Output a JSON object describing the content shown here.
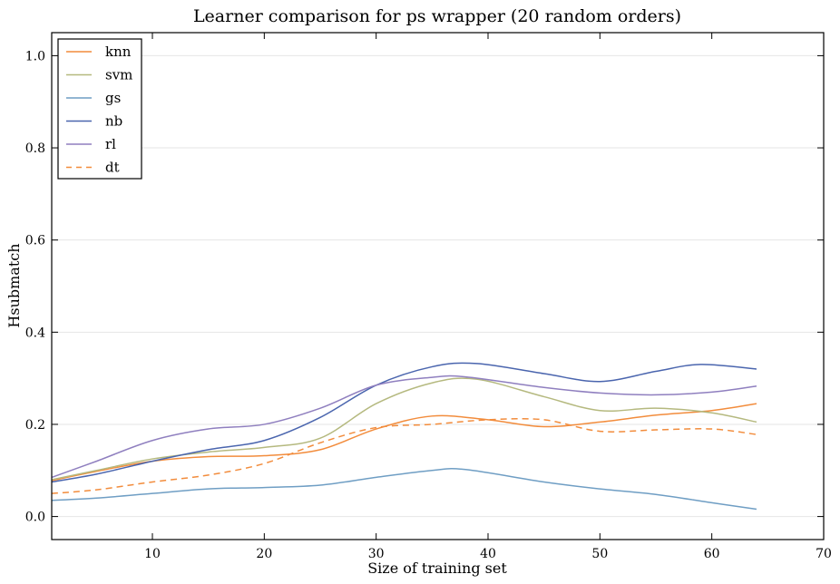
{
  "chart_data": {
    "type": "line",
    "title": "Learner comparison for ps wrapper (20 random orders)",
    "xlabel": "Size of training set",
    "ylabel": "Hsubmatch",
    "xlim": [
      1,
      70
    ],
    "ylim": [
      -0.05,
      1.05
    ],
    "xticks": [
      10,
      20,
      30,
      40,
      50,
      60,
      70
    ],
    "yticks": [
      0.0,
      0.2,
      0.4,
      0.6,
      0.8,
      1.0
    ],
    "ytick_labels": [
      "0.0",
      "0.2",
      "0.4",
      "0.6",
      "0.8",
      "1.0"
    ],
    "grid": "horizontal",
    "legend_position": "top-left",
    "series": [
      {
        "name": "knn",
        "color": "#f28c3c",
        "dash": "solid",
        "x": [
          1,
          5,
          10,
          15,
          20,
          25,
          30,
          35,
          40,
          45,
          50,
          55,
          60,
          64
        ],
        "y": [
          0.078,
          0.098,
          0.12,
          0.13,
          0.132,
          0.145,
          0.19,
          0.218,
          0.21,
          0.195,
          0.205,
          0.22,
          0.23,
          0.245
        ]
      },
      {
        "name": "svm",
        "color": "#b5b97f",
        "dash": "solid",
        "x": [
          1,
          5,
          10,
          15,
          20,
          25,
          30,
          35,
          39,
          45,
          50,
          55,
          60,
          64
        ],
        "y": [
          0.08,
          0.1,
          0.125,
          0.14,
          0.15,
          0.17,
          0.245,
          0.29,
          0.298,
          0.26,
          0.23,
          0.235,
          0.225,
          0.205
        ]
      },
      {
        "name": "gs",
        "color": "#6f9ec4",
        "dash": "solid",
        "x": [
          1,
          5,
          10,
          15,
          20,
          25,
          30,
          35,
          38,
          45,
          50,
          55,
          60,
          64
        ],
        "y": [
          0.035,
          0.04,
          0.05,
          0.06,
          0.063,
          0.068,
          0.085,
          0.1,
          0.102,
          0.075,
          0.06,
          0.048,
          0.03,
          0.016
        ]
      },
      {
        "name": "nb",
        "color": "#4a65ae",
        "dash": "solid",
        "x": [
          1,
          5,
          10,
          15,
          20,
          25,
          30,
          35,
          39,
          45,
          50,
          55,
          59,
          64
        ],
        "y": [
          0.075,
          0.092,
          0.12,
          0.145,
          0.165,
          0.215,
          0.285,
          0.325,
          0.332,
          0.31,
          0.293,
          0.315,
          0.33,
          0.32
        ]
      },
      {
        "name": "rl",
        "color": "#8f7fbf",
        "dash": "solid",
        "x": [
          1,
          5,
          10,
          15,
          20,
          25,
          30,
          35,
          38,
          45,
          50,
          55,
          60,
          64
        ],
        "y": [
          0.085,
          0.12,
          0.165,
          0.19,
          0.2,
          0.235,
          0.285,
          0.302,
          0.303,
          0.28,
          0.268,
          0.264,
          0.27,
          0.283
        ]
      },
      {
        "name": "dt",
        "color": "#f28c3c",
        "dash": "dashed",
        "x": [
          1,
          5,
          10,
          15,
          20,
          25,
          30,
          35,
          40,
          45,
          50,
          55,
          60,
          64
        ],
        "y": [
          0.05,
          0.058,
          0.075,
          0.09,
          0.115,
          0.16,
          0.193,
          0.2,
          0.21,
          0.21,
          0.185,
          0.188,
          0.19,
          0.178
        ]
      }
    ]
  }
}
